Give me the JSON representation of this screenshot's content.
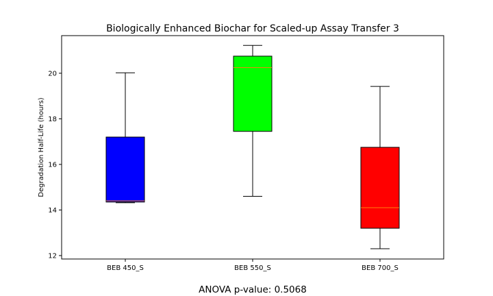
{
  "chart_data": {
    "type": "box",
    "title": "Biologically Enhanced Biochar for Scaled-up Assay Transfer 3",
    "xlabel": "",
    "ylabel": "Degradation Half-Life (hours)",
    "ylim": [
      11.85,
      21.65
    ],
    "yticks": [
      12,
      14,
      16,
      18,
      20
    ],
    "grid": false,
    "categories": [
      "BEB 450_S",
      "BEB 550_S",
      "BEB 700_S"
    ],
    "boxes": [
      {
        "name": "BEB 450_S",
        "whisker_low": 14.32,
        "q1": 14.35,
        "median": 14.4,
        "q3": 17.2,
        "whisker_high": 20.02,
        "color": "#0000ff"
      },
      {
        "name": "BEB 550_S",
        "whisker_low": 14.6,
        "q1": 17.45,
        "median": 20.25,
        "q3": 20.75,
        "whisker_high": 21.22,
        "color": "#00ff00"
      },
      {
        "name": "BEB 700_S",
        "whisker_low": 12.3,
        "q1": 13.2,
        "median": 14.1,
        "q3": 16.75,
        "whisker_high": 19.42,
        "color": "#ff0000"
      }
    ],
    "median_color": "#ff7f0e"
  },
  "footnote": "ANOVA p-value: 0.5068"
}
